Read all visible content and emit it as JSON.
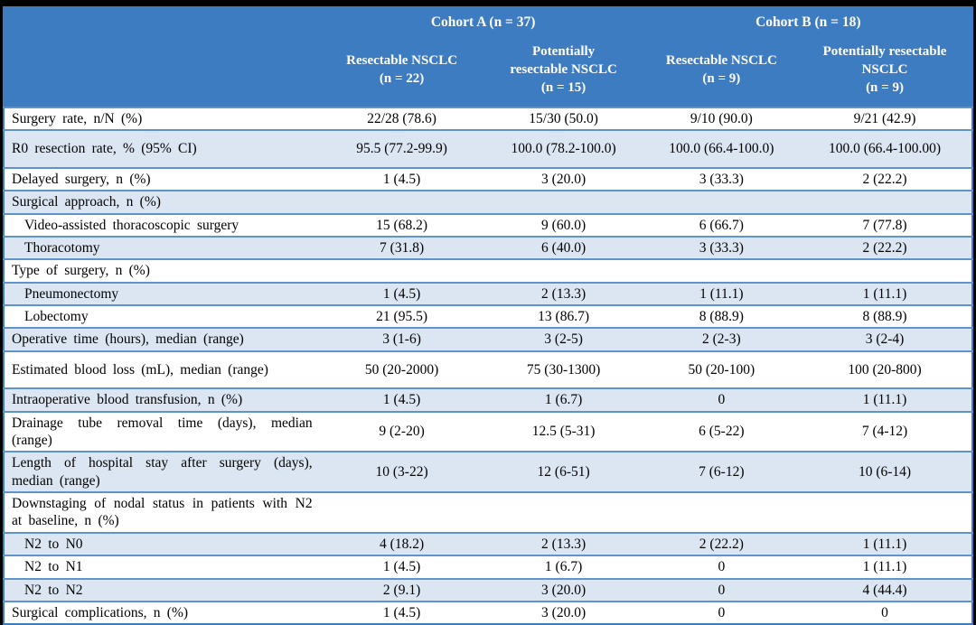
{
  "header": {
    "cohort_a": "Cohort A (n = 37)",
    "cohort_b": "Cohort B (n = 18)",
    "subcolumns": [
      "Resectable NSCLC\n(n = 22)",
      "Potentially\nresectable NSCLC\n(n = 15)",
      "Resectable NSCLC\n(n = 9)",
      "Potentially resectable\nNSCLC\n(n = 9)"
    ]
  },
  "rows": [
    {
      "label": "Surgery rate, n/N (%)",
      "indent": false,
      "tall": false,
      "values": [
        "22/28 (78.6)",
        "15/30 (50.0)",
        "9/10 (90.0)",
        "9/21 (42.9)"
      ]
    },
    {
      "label": "R0 resection rate, % (95% CI)",
      "indent": false,
      "tall": true,
      "values": [
        "95.5 (77.2-99.9)",
        "100.0 (78.2-100.0)",
        "100.0 (66.4-100.0)",
        "100.0 (66.4-100.00)"
      ]
    },
    {
      "label": "Delayed surgery, n (%)",
      "indent": false,
      "tall": false,
      "values": [
        "1 (4.5)",
        "3 (20.0)",
        "3 (33.3)",
        "2 (22.2)"
      ]
    },
    {
      "label": "Surgical approach, n (%)",
      "indent": false,
      "tall": false,
      "values": [
        "",
        "",
        "",
        ""
      ]
    },
    {
      "label": "Video-assisted thoracoscopic surgery",
      "indent": true,
      "tall": false,
      "values": [
        "15 (68.2)",
        "9 (60.0)",
        "6 (66.7)",
        "7 (77.8)"
      ]
    },
    {
      "label": "Thoracotomy",
      "indent": true,
      "tall": false,
      "values": [
        "7 (31.8)",
        "6 (40.0)",
        "3 (33.3)",
        "2 (22.2)"
      ]
    },
    {
      "label": "Type of surgery, n (%)",
      "indent": false,
      "tall": false,
      "values": [
        "",
        "",
        "",
        ""
      ]
    },
    {
      "label": "Pneumonectomy",
      "indent": true,
      "tall": false,
      "values": [
        "1 (4.5)",
        "2 (13.3)",
        "1 (11.1)",
        "1 (11.1)"
      ]
    },
    {
      "label": "Lobectomy",
      "indent": true,
      "tall": false,
      "values": [
        "21 (95.5)",
        "13 (86.7)",
        "8 (88.9)",
        "8 (88.9)"
      ]
    },
    {
      "label": "Operative time (hours), median (range)",
      "indent": false,
      "tall": false,
      "values": [
        "3 (1-6)",
        "3 (2-5)",
        "2 (2-3)",
        "3 (2-4)"
      ]
    },
    {
      "label": "Estimated blood loss (mL), median (range)",
      "indent": false,
      "tall": true,
      "values": [
        "50 (20-2000)",
        "75 (30-1300)",
        "50 (20-100)",
        "100 (20-800)"
      ]
    },
    {
      "label": "Intraoperative blood transfusion, n (%)",
      "indent": false,
      "tall": false,
      "values": [
        "1 (4.5)",
        "1 (6.7)",
        "0",
        "1 (11.1)"
      ]
    },
    {
      "label": "Drainage tube removal time (days), median (range)",
      "indent": false,
      "tall": false,
      "values": [
        "9 (2-20)",
        "12.5 (5-31)",
        "6 (5-22)",
        "7 (4-12)"
      ]
    },
    {
      "label": "Length of hospital stay after surgery (days), median (range)",
      "indent": false,
      "tall": false,
      "values": [
        "10 (3-22)",
        "12 (6-51)",
        "7 (6-12)",
        "10 (6-14)"
      ]
    },
    {
      "label": "Downstaging of nodal status in patients with N2 at baseline, n (%)",
      "indent": false,
      "tall": false,
      "values": [
        "",
        "",
        "",
        ""
      ]
    },
    {
      "label": "N2 to N0",
      "indent": true,
      "tall": false,
      "values": [
        "4 (18.2)",
        "2 (13.3)",
        "2 (22.2)",
        "1 (11.1)"
      ]
    },
    {
      "label": "N2 to N1",
      "indent": true,
      "tall": false,
      "values": [
        "1 (4.5)",
        "1 (6.7)",
        "0",
        "1 (11.1)"
      ]
    },
    {
      "label": "N2 to N2",
      "indent": true,
      "tall": false,
      "values": [
        "2 (9.1)",
        "3 (20.0)",
        "0",
        "4 (44.4)"
      ]
    },
    {
      "label": "Surgical complications, n (%)",
      "indent": false,
      "tall": false,
      "values": [
        "1 (4.5)",
        "3 (20.0)",
        "0",
        "0"
      ]
    }
  ],
  "colors": {
    "header_bg": "#3e7cc1",
    "stripe_bg": "#dce6f2",
    "rule": "#5e93cc",
    "matte": "#000000"
  }
}
